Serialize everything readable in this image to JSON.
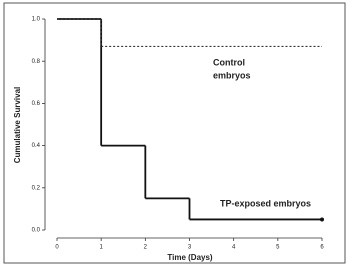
{
  "chart_data": {
    "type": "step",
    "xlabel": "Time (Days)",
    "ylabel": "Cumulative Survival",
    "x": [
      0,
      1,
      2,
      3,
      6
    ],
    "series": [
      {
        "color": "#111111",
        "dashed": false,
        "end_marker": true,
        "values": [
          1.0,
          0.4,
          0.15,
          0.05,
          0.05
        ]
      },
      {
        "color": "#333333",
        "dashed": true,
        "end_marker": false,
        "values": [
          1.0,
          0.87,
          0.87,
          0.87,
          0.87
        ]
      }
    ],
    "annotations": [
      "Control",
      "embryos",
      "TP-exposed embryos"
    ],
    "xlim": [
      0,
      6
    ],
    "xticks": [
      0,
      1,
      2,
      3,
      4,
      5,
      6
    ],
    "ylim": [
      0,
      1
    ],
    "yticks": [
      {
        "value": 0,
        "label": "0.0"
      },
      0.2,
      0.4,
      0.6,
      0.8,
      {
        "value": 1,
        "label": "1.0"
      }
    ],
    "grid": false
  }
}
